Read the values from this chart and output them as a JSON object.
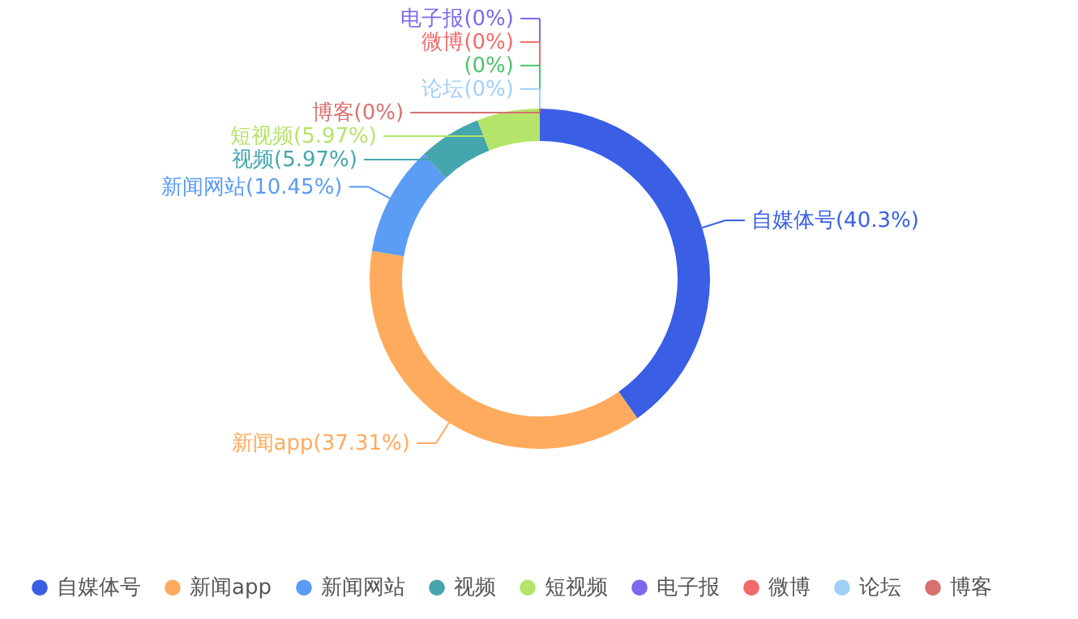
{
  "chart_data": {
    "type": "donut",
    "categories": [
      "自媒体号",
      "新闻app",
      "新闻网站",
      "视频",
      "短视频",
      "电子报",
      "微博",
      null,
      "论坛",
      "博客"
    ],
    "values": [
      40.3,
      37.31,
      10.45,
      5.97,
      5.97,
      0,
      0,
      0,
      0,
      0
    ],
    "colors": [
      "#3a5fe5",
      "#ffab5e",
      "#5b9cf5",
      "#45a6ad",
      "#b5e46a",
      "#7b68ee",
      "#f06a6a",
      "#4cc46a",
      "#a0cff8",
      "#d97070"
    ],
    "value_labels": [
      "自媒体号(40.3%)",
      "新闻app(37.31%)",
      "新闻网站(10.45%)",
      "视频(5.97%)",
      "短视频(5.97%)",
      "电子报(0%)",
      "微博(0%)",
      "(0%)",
      "论坛(0%)",
      "博客(0%)"
    ],
    "legend": "bottom"
  }
}
